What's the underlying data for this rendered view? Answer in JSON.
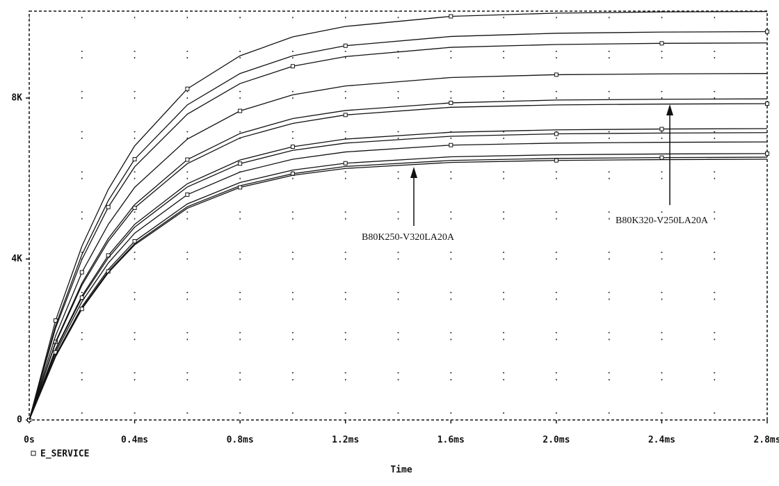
{
  "chart_data": {
    "type": "line",
    "x": [
      0,
      0.0001,
      0.0002,
      0.0003,
      0.0004,
      0.0006,
      0.0008,
      0.001,
      0.0012,
      0.0016,
      0.002,
      0.0024,
      0.0028
    ],
    "series": [
      {
        "color": "#111111",
        "values": [
          0,
          2470,
          4320,
          5730,
          6810,
          8230,
          9050,
          9520,
          9780,
          10030,
          10110,
          10140,
          10150
        ]
      },
      {
        "color": "#111111",
        "values": [
          0,
          2340,
          4110,
          5450,
          6480,
          7830,
          8610,
          9050,
          9300,
          9530,
          9610,
          9640,
          9650
        ]
      },
      {
        "color": "#111111",
        "values": [
          0,
          2280,
          3990,
          5290,
          6290,
          7600,
          8360,
          8790,
          9030,
          9260,
          9330,
          9360,
          9370
        ]
      },
      {
        "color": "#111111",
        "values": [
          0,
          2090,
          3670,
          4860,
          5780,
          6980,
          7680,
          8080,
          8300,
          8510,
          8580,
          8600,
          8610
        ]
      },
      {
        "color": "#111111",
        "values": [
          0,
          1940,
          3400,
          4510,
          5350,
          6470,
          7120,
          7490,
          7690,
          7880,
          7950,
          7970,
          7980
        ]
      },
      {
        "color": "#111111",
        "values": [
          0,
          1910,
          3350,
          4440,
          5270,
          6370,
          7010,
          7370,
          7580,
          7770,
          7830,
          7850,
          7860
        ]
      },
      {
        "color": "#111111",
        "values": [
          0,
          1760,
          3080,
          4090,
          4860,
          5870,
          6460,
          6790,
          6980,
          7150,
          7210,
          7230,
          7240
        ]
      },
      {
        "color": "#111111",
        "values": [
          0,
          1740,
          3040,
          4030,
          4790,
          5790,
          6370,
          6700,
          6880,
          7050,
          7110,
          7130,
          7140
        ]
      },
      {
        "color": "#111111",
        "values": [
          0,
          1680,
          2940,
          3900,
          4640,
          5600,
          6160,
          6480,
          6660,
          6830,
          6880,
          6900,
          6910
        ]
      },
      {
        "color": "#111111",
        "values": [
          0,
          1610,
          2820,
          3740,
          4440,
          5370,
          5900,
          6210,
          6380,
          6540,
          6590,
          6610,
          6620
        ]
      },
      {
        "color": "#111111",
        "values": [
          0,
          1590,
          2780,
          3690,
          4380,
          5300,
          5820,
          6120,
          6300,
          6450,
          6500,
          6520,
          6530
        ]
      },
      {
        "color": "#111111",
        "values": [
          0,
          1570,
          2760,
          3660,
          4350,
          5260,
          5780,
          6080,
          6250,
          6400,
          6450,
          6470,
          6480
        ]
      }
    ],
    "xlim": [
      0,
      0.0028
    ],
    "ylim": [
      0,
      10160
    ],
    "xticks": [
      {
        "value": 0,
        "label": "0s"
      },
      {
        "value": 0.0004,
        "label": "0.4ms"
      },
      {
        "value": 0.0008,
        "label": "0.8ms"
      },
      {
        "value": 0.0012,
        "label": "1.2ms"
      },
      {
        "value": 0.0016,
        "label": "1.6ms"
      },
      {
        "value": 0.002,
        "label": "2.0ms"
      },
      {
        "value": 0.0024,
        "label": "2.4ms"
      },
      {
        "value": 0.0028,
        "label": "2.8ms"
      }
    ],
    "yticks": [
      0,
      {
        "value": 4000,
        "label": "4K"
      },
      {
        "value": 8000,
        "label": "8K"
      }
    ],
    "x_minor_ticks": [
      0.0002,
      0.0004,
      0.0006,
      0.0008,
      0.001,
      0.0012,
      0.0014,
      0.0016,
      0.0018,
      0.002,
      0.0022,
      0.0024,
      0.0026
    ],
    "y_minor_ticks": [
      1000,
      2000,
      3000,
      4000,
      5000,
      6000,
      7000,
      8000,
      9000,
      10000
    ],
    "xlabel": "Time",
    "legend": "E_SERVICE",
    "annotations": [
      "B80K250-V320LA20A",
      "B80K320-V250LA20A"
    ]
  }
}
